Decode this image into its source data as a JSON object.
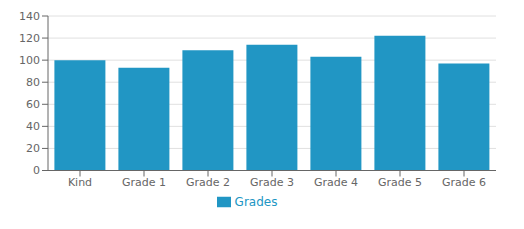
{
  "chart_data": {
    "type": "bar",
    "categories": [
      "Kind",
      "Grade 1",
      "Grade 2",
      "Grade 3",
      "Grade 4",
      "Grade 5",
      "Grade 6"
    ],
    "series": [
      {
        "name": "Grades",
        "color": "#2196c4",
        "values": [
          100,
          93,
          109,
          114,
          103,
          122,
          97
        ]
      }
    ],
    "ylim": [
      0,
      140
    ],
    "yticks": [
      0,
      20,
      40,
      60,
      80,
      100,
      120,
      140
    ],
    "grid": true,
    "legend": "bottom"
  }
}
